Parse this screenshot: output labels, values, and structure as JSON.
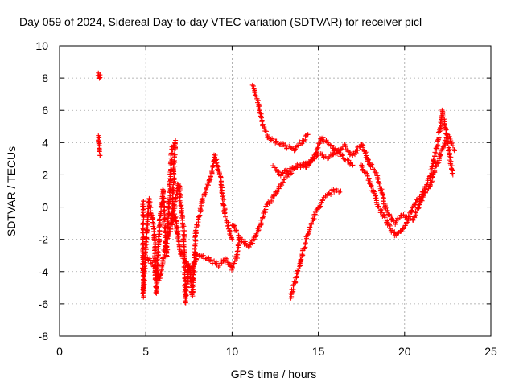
{
  "chart_data": {
    "type": "scatter",
    "title": "Day 059 of 2024, Sidereal Day-to-day VTEC variation (SDTVAR) for receiver picl",
    "xlabel": "GPS time / hours",
    "ylabel": "SDTVAR / TECUs",
    "xlim": [
      0,
      25
    ],
    "ylim": [
      -8,
      10
    ],
    "xticks": [
      "0",
      "5",
      "10",
      "15",
      "20",
      "25"
    ],
    "yticks": [
      "-8",
      "-6",
      "-4",
      "-2",
      "0",
      "2",
      "4",
      "6",
      "8",
      "10"
    ],
    "grid": true,
    "marker": "+",
    "color": "#ff0000",
    "series": [
      {
        "segments": [
          [
            [
              2.25,
              8.3
            ],
            [
              2.3,
              8.0
            ],
            [
              2.35,
              8.2
            ]
          ],
          [
            [
              2.25,
              4.5
            ],
            [
              2.3,
              3.8
            ],
            [
              2.35,
              3.2
            ]
          ],
          [
            [
              4.85,
              0.4
            ],
            [
              4.85,
              -5.5
            ],
            [
              5.0,
              -2.5
            ],
            [
              5.2,
              0.5
            ],
            [
              5.5,
              -1.5
            ],
            [
              5.6,
              -5.3
            ],
            [
              5.8,
              -1.0
            ],
            [
              6.0,
              1.0
            ],
            [
              6.2,
              -3.0
            ],
            [
              6.5,
              3.5
            ],
            [
              6.7,
              4.1
            ],
            [
              6.5,
              -1.0
            ],
            [
              6.9,
              1.5
            ],
            [
              7.2,
              -1.5
            ],
            [
              7.3,
              -5.9
            ],
            [
              7.5,
              -3.5
            ],
            [
              7.7,
              -5.5
            ],
            [
              7.9,
              -1.5
            ],
            [
              8.3,
              0.5
            ],
            [
              8.8,
              2.0
            ],
            [
              9.0,
              3.2
            ],
            [
              9.3,
              2.0
            ],
            [
              9.6,
              -0.5
            ],
            [
              10.0,
              -2.0
            ]
          ],
          [
            [
              4.9,
              -3.0
            ],
            [
              5.4,
              -3.5
            ],
            [
              5.8,
              -4.5
            ],
            [
              6.2,
              -2.0
            ],
            [
              6.7,
              -0.5
            ],
            [
              7.0,
              -2.8
            ],
            [
              7.6,
              -4.0
            ],
            [
              8.0,
              -3.0
            ],
            [
              8.6,
              -3.2
            ],
            [
              9.2,
              -3.6
            ],
            [
              9.6,
              -3.2
            ],
            [
              10.0,
              -3.8
            ],
            [
              10.3,
              -3.0
            ],
            [
              10.4,
              -2.0
            ]
          ],
          [
            [
              10.0,
              -1.0
            ],
            [
              10.5,
              -2.0
            ],
            [
              11.0,
              -2.5
            ],
            [
              11.5,
              -1.5
            ],
            [
              12.0,
              0.0
            ],
            [
              12.6,
              1.0
            ],
            [
              13.2,
              2.0
            ],
            [
              13.8,
              2.5
            ],
            [
              14.5,
              2.8
            ],
            [
              15.0,
              3.3
            ],
            [
              15.5,
              3.0
            ],
            [
              16.0,
              3.5
            ],
            [
              16.6,
              3.0
            ],
            [
              17.0,
              2.6
            ]
          ],
          [
            [
              11.2,
              7.6
            ],
            [
              11.5,
              6.5
            ],
            [
              11.8,
              5.0
            ],
            [
              12.1,
              4.3
            ],
            [
              12.6,
              4.0
            ],
            [
              13.2,
              3.7
            ],
            [
              13.6,
              3.5
            ],
            [
              14.0,
              4.0
            ],
            [
              14.4,
              4.5
            ]
          ],
          [
            [
              12.4,
              2.5
            ],
            [
              12.8,
              2.0
            ],
            [
              13.3,
              2.3
            ],
            [
              13.8,
              2.6
            ],
            [
              14.3,
              2.5
            ],
            [
              14.8,
              3.2
            ],
            [
              15.2,
              4.3
            ],
            [
              15.6,
              4.0
            ],
            [
              16.0,
              3.4
            ],
            [
              16.5,
              3.8
            ],
            [
              17.0,
              3.2
            ],
            [
              17.5,
              3.9
            ],
            [
              18.0,
              2.6
            ]
          ],
          [
            [
              13.4,
              -5.6
            ],
            [
              13.8,
              -4.0
            ],
            [
              14.3,
              -2.0
            ],
            [
              14.8,
              -0.5
            ],
            [
              15.3,
              0.5
            ],
            [
              15.8,
              1.0
            ],
            [
              16.3,
              1.0
            ]
          ],
          [
            [
              17.5,
              2.6
            ],
            [
              18.0,
              1.5
            ],
            [
              18.5,
              0.0
            ],
            [
              19.0,
              -1.0
            ],
            [
              19.5,
              -1.8
            ],
            [
              20.0,
              -1.2
            ],
            [
              20.5,
              0.0
            ],
            [
              21.0,
              0.8
            ],
            [
              21.5,
              2.0
            ],
            [
              22.0,
              4.5
            ],
            [
              22.2,
              5.9
            ],
            [
              22.5,
              4.0
            ],
            [
              22.8,
              2.0
            ]
          ],
          [
            [
              17.8,
              3.0
            ],
            [
              18.4,
              2.0
            ],
            [
              18.9,
              0.0
            ],
            [
              19.4,
              -1.0
            ],
            [
              19.9,
              -0.5
            ],
            [
              20.5,
              -0.8
            ],
            [
              21.0,
              0.5
            ],
            [
              21.5,
              1.5
            ],
            [
              22.0,
              3.0
            ],
            [
              22.5,
              4.5
            ],
            [
              22.9,
              3.5
            ]
          ]
        ]
      }
    ]
  }
}
